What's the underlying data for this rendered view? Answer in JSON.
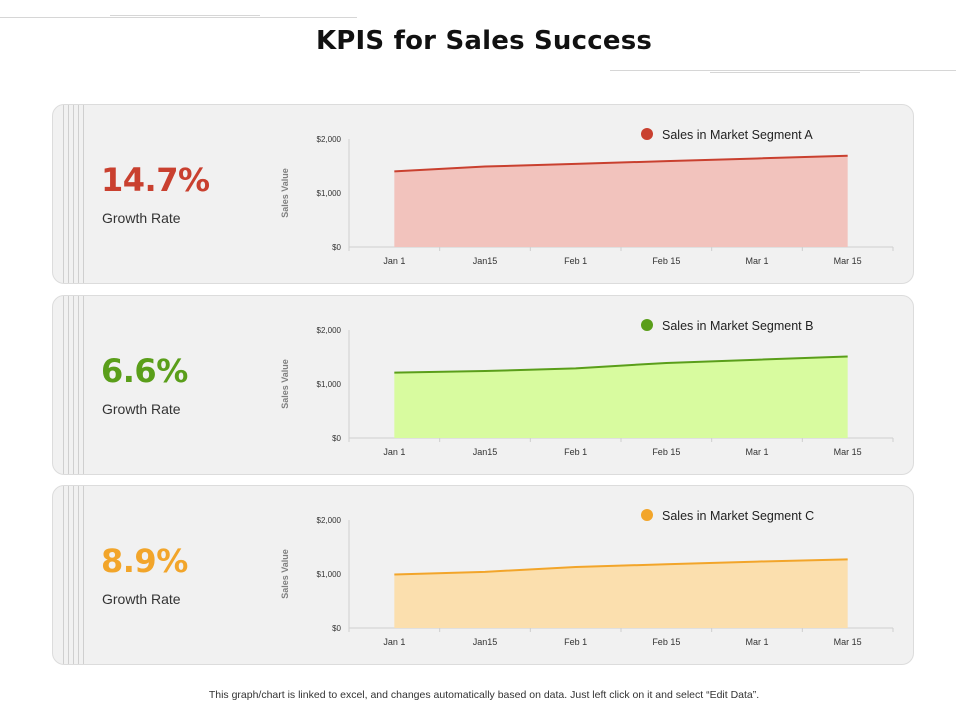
{
  "title": "KPIS for Sales Success",
  "footer_note": "This graph/chart is linked to excel, and changes automatically based on data. Just left click on it and select “Edit Data”.",
  "panels": [
    {
      "kpi_value": "14.7%",
      "kpi_label": "Growth Rate",
      "accent_color": "#c9402f",
      "fill_color": "#f2c3bd",
      "marker_color": "#c9402f"
    },
    {
      "kpi_value": "6.6%",
      "kpi_label": "Growth Rate",
      "accent_color": "#5a9e1a",
      "fill_color": "#d8fb9f",
      "marker_color": "#5a9e1a"
    },
    {
      "kpi_value": "8.9%",
      "kpi_label": "Growth Rate",
      "accent_color": "#f2a52a",
      "fill_color": "#fbdfae",
      "marker_color": "#f2a52a"
    }
  ],
  "chart_data": [
    {
      "type": "area",
      "categories": [
        "Jan 1",
        "Jan15",
        "Feb 1",
        "Feb 15",
        "Mar 1",
        "Mar 15"
      ],
      "series": [
        {
          "name": "Sales in Market Segment A",
          "values": [
            1400,
            1490,
            1540,
            1590,
            1640,
            1690
          ]
        }
      ],
      "ylabel": "Sales Value",
      "yticks": [
        "$0",
        "$1,000",
        "$2,000"
      ],
      "ylim": [
        0,
        2000
      ],
      "legend": "top-right",
      "grid": false
    },
    {
      "type": "area",
      "categories": [
        "Jan 1",
        "Jan15",
        "Feb 1",
        "Feb 15",
        "Mar 1",
        "Mar 15"
      ],
      "series": [
        {
          "name": "Sales in Market Segment B",
          "values": [
            1210,
            1240,
            1290,
            1390,
            1450,
            1510
          ]
        }
      ],
      "ylabel": "Sales Value",
      "yticks": [
        "$0",
        "$1,000",
        "$2,000"
      ],
      "ylim": [
        0,
        2000
      ],
      "legend": "top-right",
      "grid": false
    },
    {
      "type": "area",
      "categories": [
        "Jan 1",
        "Jan15",
        "Feb 1",
        "Feb 15",
        "Mar 1",
        "Mar 15"
      ],
      "series": [
        {
          "name": "Sales in Market Segment C",
          "values": [
            990,
            1040,
            1130,
            1180,
            1230,
            1270
          ]
        }
      ],
      "ylabel": "Sales Value",
      "yticks": [
        "$0",
        "$1,000",
        "$2,000"
      ],
      "ylim": [
        0,
        2000
      ],
      "legend": "top-right",
      "grid": false
    }
  ]
}
